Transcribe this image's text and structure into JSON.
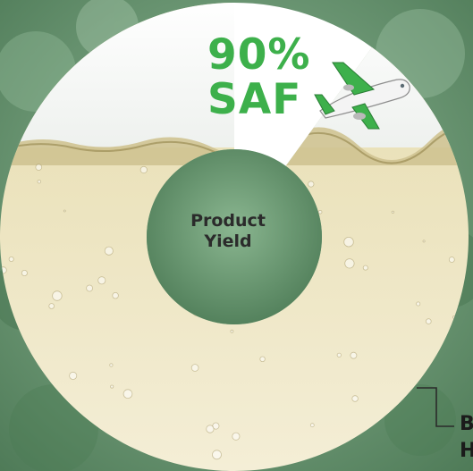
{
  "chart_data": {
    "type": "pie",
    "donut": true,
    "title": "",
    "center_label": [
      "Product",
      "Yield"
    ],
    "slices": [
      {
        "label_lines": [
          "90%",
          "SAF"
        ],
        "value": 90,
        "color": "#efe8c8"
      },
      {
        "label_lines": [
          "B",
          "H"
        ],
        "value": 10,
        "color": "#ffffff"
      }
    ],
    "legend": "none"
  },
  "colors": {
    "accent": "#3db04b",
    "fuel": "#efe8c8",
    "air": "#ffffff",
    "forest": "#5d8a66"
  },
  "icons": {
    "plane": "airplane-icon"
  }
}
